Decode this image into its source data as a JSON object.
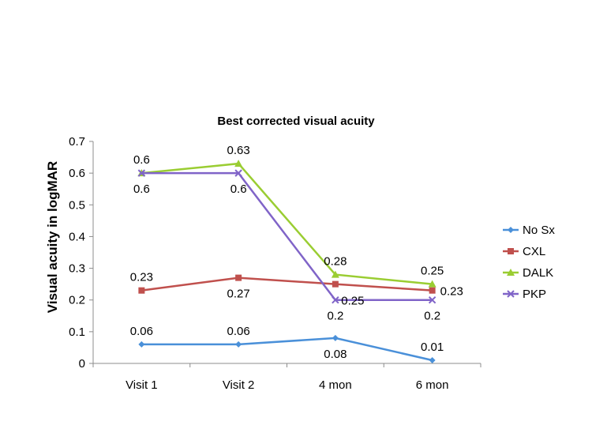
{
  "chart_data": {
    "type": "line",
    "title": "Best corrected visual acuity",
    "xlabel": "",
    "ylabel": "Visual acuity in logMAR",
    "categories": [
      "Visit 1",
      "Visit 2",
      "4 mon",
      "6 mon"
    ],
    "ylim": [
      0,
      0.7
    ],
    "yticks": [
      "0",
      "0.1",
      "0.2",
      "0.3",
      "0.4",
      "0.5",
      "0.6",
      "0.7"
    ],
    "grid": false,
    "legend": "right",
    "series": [
      {
        "name": "No Sx",
        "color": "#4a90d9",
        "marker": "diamond",
        "values": [
          0.06,
          0.06,
          0.08,
          0.01
        ],
        "labels": [
          "0.06",
          "0.06",
          "0.08",
          "0.01"
        ]
      },
      {
        "name": "CXL",
        "color": "#c0504d",
        "marker": "square",
        "values": [
          0.23,
          0.27,
          0.25,
          0.23
        ],
        "labels": [
          "0.23",
          "0.27",
          "0.25",
          "0.23"
        ]
      },
      {
        "name": "DALK",
        "color": "#9acd32",
        "marker": "triangle",
        "values": [
          0.6,
          0.63,
          0.28,
          0.25
        ],
        "labels": [
          "0.6",
          "0.63",
          "0.28",
          "0.25"
        ]
      },
      {
        "name": "PKP",
        "color": "#8064c8",
        "marker": "x",
        "values": [
          0.6,
          0.6,
          0.2,
          0.2
        ],
        "labels": [
          "0.6",
          "0.6",
          "0.2",
          "0.2"
        ]
      }
    ]
  }
}
